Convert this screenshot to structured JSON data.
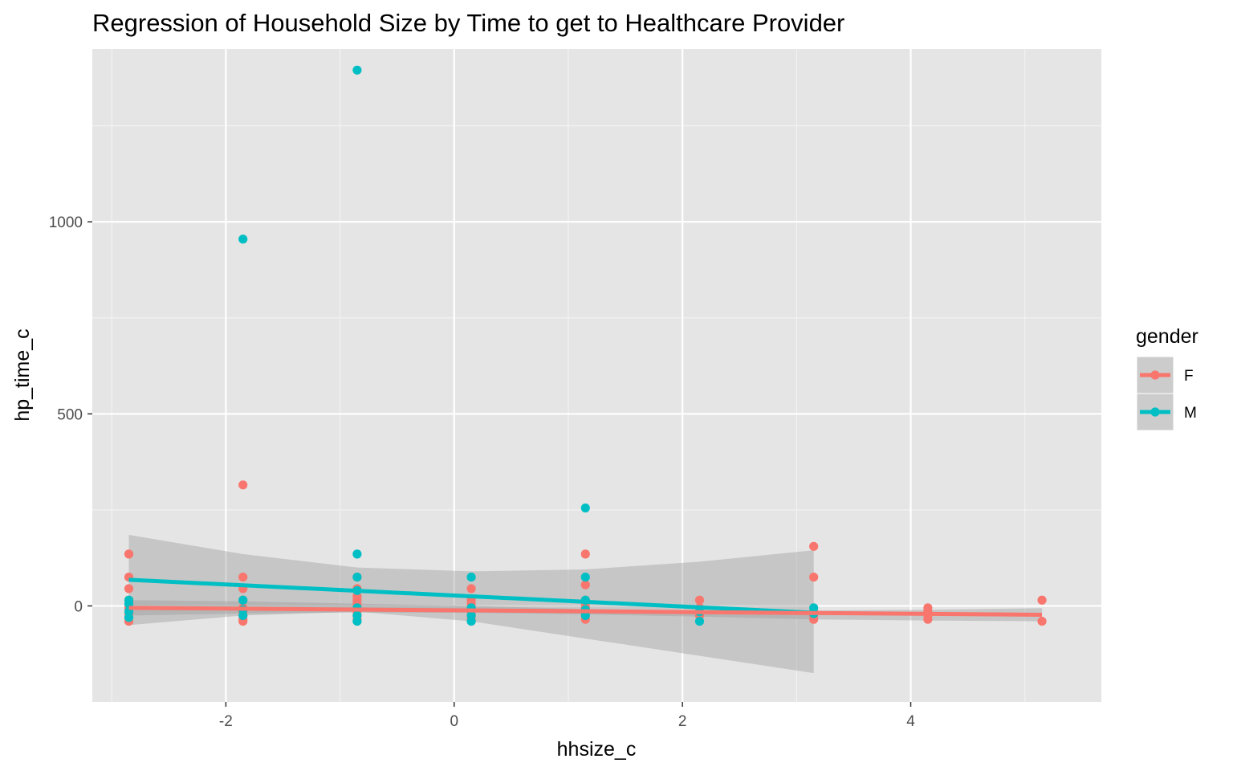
{
  "chart_data": {
    "type": "scatter",
    "title": "Regression of Household Size by Time to get to Healthcare Provider",
    "xlabel": "hhsize_c",
    "ylabel": "hp_time_c",
    "xlim": [
      -3.17,
      5.67
    ],
    "ylim": [
      -250,
      1450
    ],
    "xticks": [
      -2,
      0,
      2,
      4
    ],
    "yticks": [
      0,
      500,
      1000
    ],
    "x_tick_labels": [
      "-2",
      "0",
      "2",
      "4"
    ],
    "y_tick_labels": [
      "0",
      "500",
      "1000"
    ],
    "grid": true,
    "background": "#e5e5e5",
    "legend": {
      "title": "gender",
      "placement": "right",
      "entries": [
        {
          "label": "F",
          "color": "#f8766d"
        },
        {
          "label": "M",
          "color": "#00bfc4"
        }
      ]
    },
    "series": [
      {
        "name": "F",
        "color": "#f8766d",
        "points": [
          [
            -2.85,
            135
          ],
          [
            -2.85,
            75
          ],
          [
            -2.85,
            45
          ],
          [
            -2.85,
            15
          ],
          [
            -2.85,
            -5
          ],
          [
            -2.85,
            -20
          ],
          [
            -2.85,
            -30
          ],
          [
            -2.85,
            -40
          ],
          [
            -1.85,
            315
          ],
          [
            -1.85,
            75
          ],
          [
            -1.85,
            45
          ],
          [
            -1.85,
            15
          ],
          [
            -1.85,
            -5
          ],
          [
            -1.85,
            -15
          ],
          [
            -1.85,
            -25
          ],
          [
            -1.85,
            -35
          ],
          [
            -1.85,
            -40
          ],
          [
            -0.85,
            75
          ],
          [
            -0.85,
            45
          ],
          [
            -0.85,
            25
          ],
          [
            -0.85,
            15
          ],
          [
            -0.85,
            5
          ],
          [
            -0.85,
            -5
          ],
          [
            -0.85,
            -15
          ],
          [
            -0.85,
            -25
          ],
          [
            -0.85,
            -35
          ],
          [
            0.15,
            45
          ],
          [
            0.15,
            15
          ],
          [
            0.15,
            5
          ],
          [
            0.15,
            -5
          ],
          [
            0.15,
            -15
          ],
          [
            0.15,
            -25
          ],
          [
            0.15,
            -35
          ],
          [
            1.15,
            135
          ],
          [
            1.15,
            55
          ],
          [
            1.15,
            15
          ],
          [
            1.15,
            5
          ],
          [
            1.15,
            -5
          ],
          [
            1.15,
            -15
          ],
          [
            1.15,
            -25
          ],
          [
            1.15,
            -35
          ],
          [
            2.15,
            15
          ],
          [
            2.15,
            -5
          ],
          [
            2.15,
            -25
          ],
          [
            3.15,
            155
          ],
          [
            3.15,
            75
          ],
          [
            3.15,
            -15
          ],
          [
            3.15,
            -25
          ],
          [
            3.15,
            -35
          ],
          [
            4.15,
            -5
          ],
          [
            4.15,
            -15
          ],
          [
            4.15,
            -25
          ],
          [
            4.15,
            -35
          ],
          [
            5.15,
            15
          ],
          [
            5.15,
            -40
          ]
        ],
        "fit": {
          "x": [
            -2.85,
            5.15
          ],
          "y": [
            -5,
            -23
          ]
        },
        "ci": {
          "x": [
            -2.85,
            -1.85,
            -0.85,
            0.15,
            1.15,
            2.15,
            3.15,
            4.15,
            5.15
          ],
          "lower": [
            -25,
            -20,
            -17,
            -18,
            -22,
            -28,
            -35,
            -38,
            -40
          ],
          "upper": [
            15,
            12,
            6,
            0,
            -8,
            -12,
            -12,
            -10,
            -6
          ]
        }
      },
      {
        "name": "M",
        "color": "#00bfc4",
        "points": [
          [
            -2.85,
            15
          ],
          [
            -2.85,
            5
          ],
          [
            -2.85,
            -15
          ],
          [
            -2.85,
            -30
          ],
          [
            -1.85,
            955
          ],
          [
            -1.85,
            15
          ],
          [
            -1.85,
            -10
          ],
          [
            -1.85,
            -25
          ],
          [
            -0.85,
            1395
          ],
          [
            -0.85,
            135
          ],
          [
            -0.85,
            75
          ],
          [
            -0.85,
            40
          ],
          [
            -0.85,
            -5
          ],
          [
            -0.85,
            -25
          ],
          [
            -0.85,
            -40
          ],
          [
            0.15,
            75
          ],
          [
            0.15,
            -5
          ],
          [
            0.15,
            -25
          ],
          [
            0.15,
            -40
          ],
          [
            1.15,
            255
          ],
          [
            1.15,
            75
          ],
          [
            1.15,
            15
          ],
          [
            1.15,
            -10
          ],
          [
            1.15,
            -25
          ],
          [
            2.15,
            -15
          ],
          [
            2.15,
            -40
          ],
          [
            3.15,
            -5
          ],
          [
            3.15,
            -20
          ]
        ],
        "fit": {
          "x": [
            -2.85,
            3.15
          ],
          "y": [
            68,
            -18
          ]
        },
        "ci": {
          "x": [
            -2.85,
            -1.85,
            -0.85,
            0.15,
            1.15,
            2.15,
            3.15
          ],
          "lower": [
            -50,
            -25,
            -15,
            -40,
            -85,
            -130,
            -175
          ],
          "upper": [
            185,
            135,
            100,
            90,
            95,
            115,
            145
          ]
        }
      }
    ]
  }
}
